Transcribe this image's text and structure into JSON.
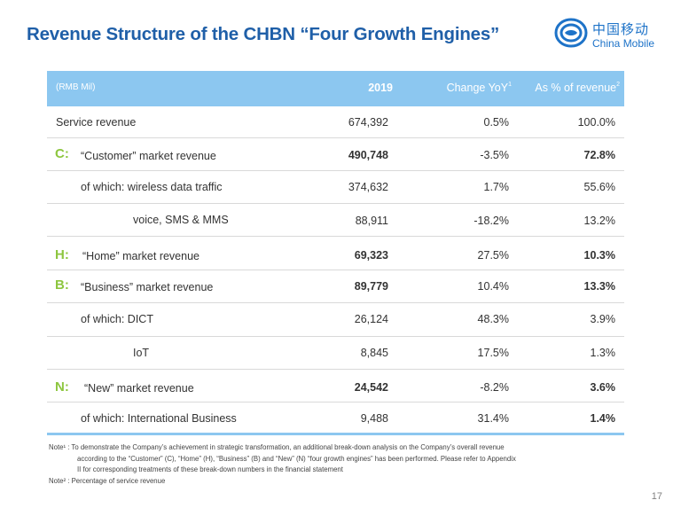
{
  "title": "Revenue Structure of the CHBN “Four Growth Engines”",
  "logo": {
    "cn": "中国移动",
    "en": "China Mobile"
  },
  "table": {
    "unit": "(RMB Mil)",
    "col_2019": "2019",
    "col_yoy": "Change YoY",
    "col_yoy_note": "1",
    "col_pct": "As % of revenue",
    "col_pct_note": "2",
    "rows": [
      {
        "letter": "",
        "label": "Service revenue",
        "v2019": "674,392",
        "yoy": "0.5%",
        "pct": "100.0%"
      },
      {
        "letter": "C:",
        "label": "“Customer” market revenue",
        "v2019": "490,748",
        "yoy": "-3.5%",
        "pct": "72.8%"
      },
      {
        "letter": "",
        "label": "of which: wireless data traffic",
        "v2019": "374,632",
        "yoy": "1.7%",
        "pct": "55.6%"
      },
      {
        "letter": "",
        "label": "voice, SMS & MMS",
        "v2019": "88,911",
        "yoy": "-18.2%",
        "pct": "13.2%"
      },
      {
        "letter": "H:",
        "label": "“Home” market revenue",
        "v2019": "69,323",
        "yoy": "27.5%",
        "pct": "10.3%"
      },
      {
        "letter": "B:",
        "label": "“Business” market revenue",
        "v2019": "89,779",
        "yoy": "10.4%",
        "pct": "13.3%"
      },
      {
        "letter": "",
        "label": "of which: DICT",
        "v2019": "26,124",
        "yoy": "48.3%",
        "pct": "3.9%"
      },
      {
        "letter": "",
        "label": "IoT",
        "v2019": "8,845",
        "yoy": "17.5%",
        "pct": "1.3%"
      },
      {
        "letter": "N:",
        "label": "“New” market revenue",
        "v2019": "24,542",
        "yoy": "-8.2%",
        "pct": "3.6%"
      },
      {
        "letter": "",
        "label": "of which: International Business",
        "v2019": "9,488",
        "yoy": "31.4%",
        "pct": "1.4%"
      }
    ]
  },
  "notes": {
    "note1_a": "Note¹ : To demonstrate the Company’s achievement in strategic transformation, an additional break-down analysis on the Company’s overall revenue",
    "note1_b": "according to the “Customer” (C), “Home” (H), “Business” (B) and “New” (N) “four growth engines” has been performed. Please refer to Appendix",
    "note1_c": "II for corresponding treatments of these break-down numbers in the financial statement",
    "note2": "Note² : Percentage of service revenue"
  },
  "page_number": "17",
  "colors": {
    "title": "#1f5fa8",
    "header": "#8cc7f0",
    "letter": "#8dc63f",
    "logo": "#1e73c8"
  }
}
